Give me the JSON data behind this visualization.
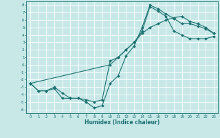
{
  "title": "",
  "xlabel": "Humidex (Indice chaleur)",
  "ylabel": "",
  "bg_color": "#c8e8e8",
  "grid_color": "#ffffff",
  "line_color": "#1a7070",
  "xlim": [
    -0.5,
    23.5
  ],
  "ylim": [
    -6.5,
    8.5
  ],
  "xticks": [
    0,
    1,
    2,
    3,
    4,
    5,
    6,
    7,
    8,
    9,
    10,
    11,
    12,
    13,
    14,
    15,
    16,
    17,
    18,
    19,
    20,
    21,
    22,
    23
  ],
  "yticks": [
    8,
    7,
    6,
    5,
    4,
    3,
    2,
    1,
    0,
    -1,
    -2,
    -3,
    -4,
    -5,
    -6
  ],
  "curve1_x": [
    0,
    1,
    2,
    3,
    4,
    5,
    6,
    7,
    8,
    9,
    10,
    11,
    12,
    13,
    14,
    15,
    16,
    17,
    18,
    19,
    20,
    21,
    22,
    23
  ],
  "curve1_y": [
    -2.5,
    -3.5,
    -3.5,
    -3.2,
    -4.5,
    -4.5,
    -4.5,
    -5.0,
    -5.8,
    -5.5,
    -2.5,
    -1.5,
    1.2,
    2.5,
    5.0,
    8.0,
    7.5,
    6.8,
    6.2,
    5.5,
    5.5,
    5.2,
    4.8,
    4.2
  ],
  "curve2_x": [
    0,
    1,
    2,
    3,
    4,
    5,
    6,
    7,
    8,
    9,
    10,
    11,
    12,
    13,
    14,
    15,
    16,
    17,
    18,
    19,
    20,
    21,
    22,
    23
  ],
  "curve2_y": [
    -2.5,
    -3.5,
    -3.5,
    -3.0,
    -3.8,
    -4.5,
    -4.5,
    -4.7,
    -5.0,
    -4.7,
    0.5,
    1.0,
    2.0,
    3.0,
    4.5,
    7.8,
    7.2,
    6.5,
    4.5,
    4.0,
    3.5,
    3.5,
    3.5,
    3.8
  ],
  "curve3_x": [
    0,
    10,
    11,
    12,
    13,
    14,
    15,
    16,
    17,
    18,
    19,
    20,
    21,
    22,
    23
  ],
  "curve3_y": [
    -2.5,
    0.0,
    1.0,
    2.0,
    3.0,
    4.2,
    5.0,
    5.5,
    6.0,
    6.3,
    6.5,
    5.8,
    5.5,
    5.0,
    4.2
  ]
}
